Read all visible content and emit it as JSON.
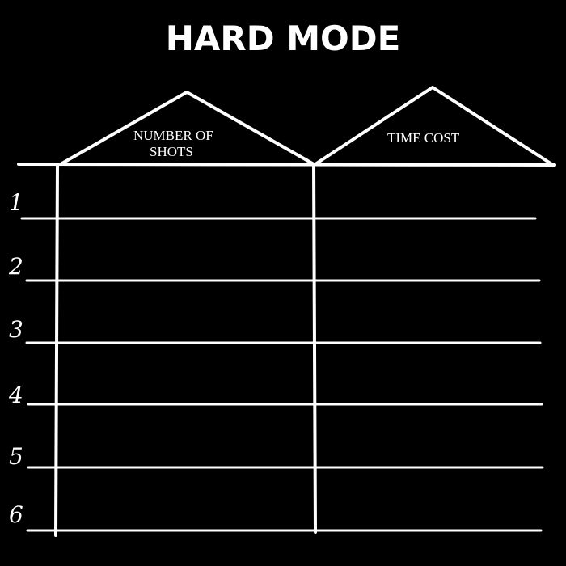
{
  "title": "HARD MODE",
  "columns": {
    "shots_line1": "NUMBER OF",
    "shots_line2": "SHOTS",
    "time": "TIME COST"
  },
  "rows": [
    "1",
    "2",
    "3",
    "4",
    "5",
    "6"
  ],
  "colors": {
    "background": "#000000",
    "ink": "#ffffff"
  }
}
